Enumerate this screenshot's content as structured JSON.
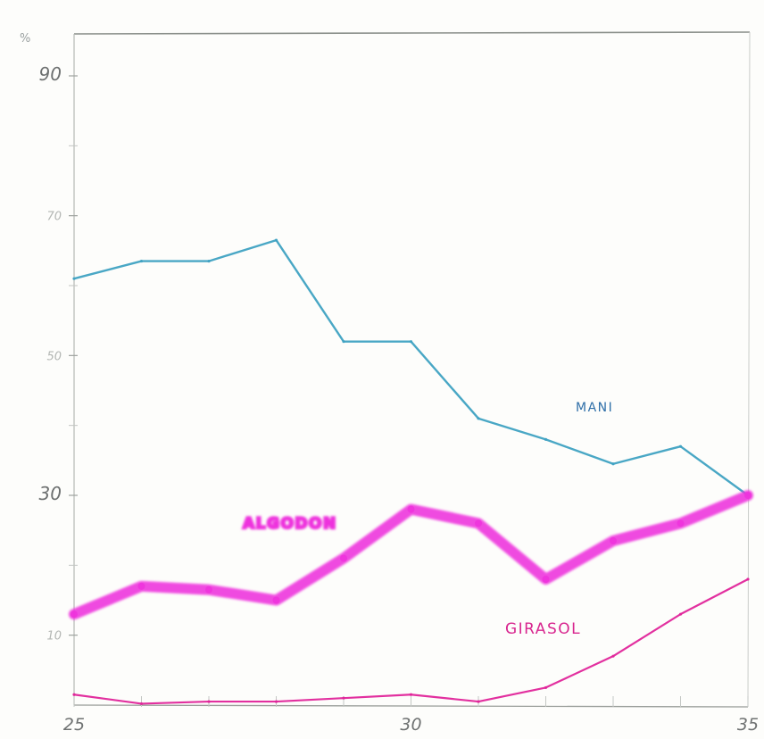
{
  "chart_data": {
    "type": "line",
    "ylabel": "%",
    "x": [
      25,
      26,
      27,
      28,
      29,
      30,
      31,
      32,
      33,
      34,
      35
    ],
    "xticks": [
      {
        "value": 25,
        "label": "25"
      },
      {
        "value": 30,
        "label": "30"
      },
      {
        "value": 35,
        "label": "35"
      }
    ],
    "yticks": [
      {
        "value": 90,
        "label": "90"
      },
      {
        "value": 70,
        "label": "70"
      },
      {
        "value": 50,
        "label": "50"
      },
      {
        "value": 30,
        "label": "30"
      },
      {
        "value": 10,
        "label": "10"
      }
    ],
    "xlim": [
      25,
      35
    ],
    "ylim": [
      0,
      96
    ],
    "grid": false,
    "series": [
      {
        "name": "MANI",
        "color": "#3fa2c2",
        "values": [
          61,
          63.5,
          63.5,
          66.5,
          52,
          52,
          41,
          38,
          34.5,
          37,
          30
        ]
      },
      {
        "name": "ALGODON",
        "color": "#ee33dd",
        "values": [
          13,
          17,
          16.5,
          15,
          21,
          28,
          26,
          18,
          23.5,
          26,
          30
        ]
      },
      {
        "name": "GIRASOL",
        "color": "#e0259a",
        "values": [
          1.5,
          0.2,
          0.5,
          0.5,
          1,
          1.5,
          0.5,
          2.5,
          7,
          13,
          18
        ]
      }
    ],
    "labels": [
      {
        "text": "MANI",
        "series": "MANI"
      },
      {
        "text": "ALGODON",
        "series": "ALGODON"
      },
      {
        "text": "GIRASOL",
        "series": "GIRASOL"
      }
    ]
  }
}
